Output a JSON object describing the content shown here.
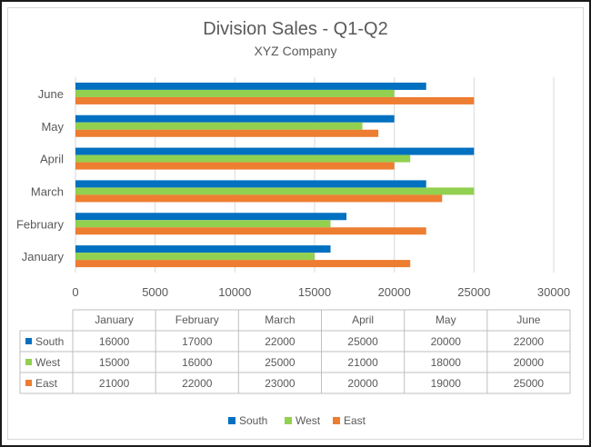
{
  "chart_data": {
    "type": "bar",
    "orientation": "horizontal",
    "title": "Division Sales - Q1-Q2",
    "subtitle": "XYZ Company",
    "categories": [
      "January",
      "February",
      "March",
      "April",
      "May",
      "June"
    ],
    "series": [
      {
        "name": "South",
        "color": "#0070c0",
        "values": [
          16000,
          17000,
          22000,
          25000,
          20000,
          22000
        ]
      },
      {
        "name": "West",
        "color": "#92d050",
        "values": [
          15000,
          16000,
          25000,
          21000,
          18000,
          20000
        ]
      },
      {
        "name": "East",
        "color": "#ed7d31",
        "values": [
          21000,
          22000,
          23000,
          20000,
          19000,
          25000
        ]
      }
    ],
    "xlim": [
      0,
      30000
    ],
    "xticks": [
      "0",
      "5000",
      "10000",
      "15000",
      "20000",
      "25000",
      "30000"
    ],
    "grid": true,
    "data_table": true,
    "legend": "bottom"
  }
}
